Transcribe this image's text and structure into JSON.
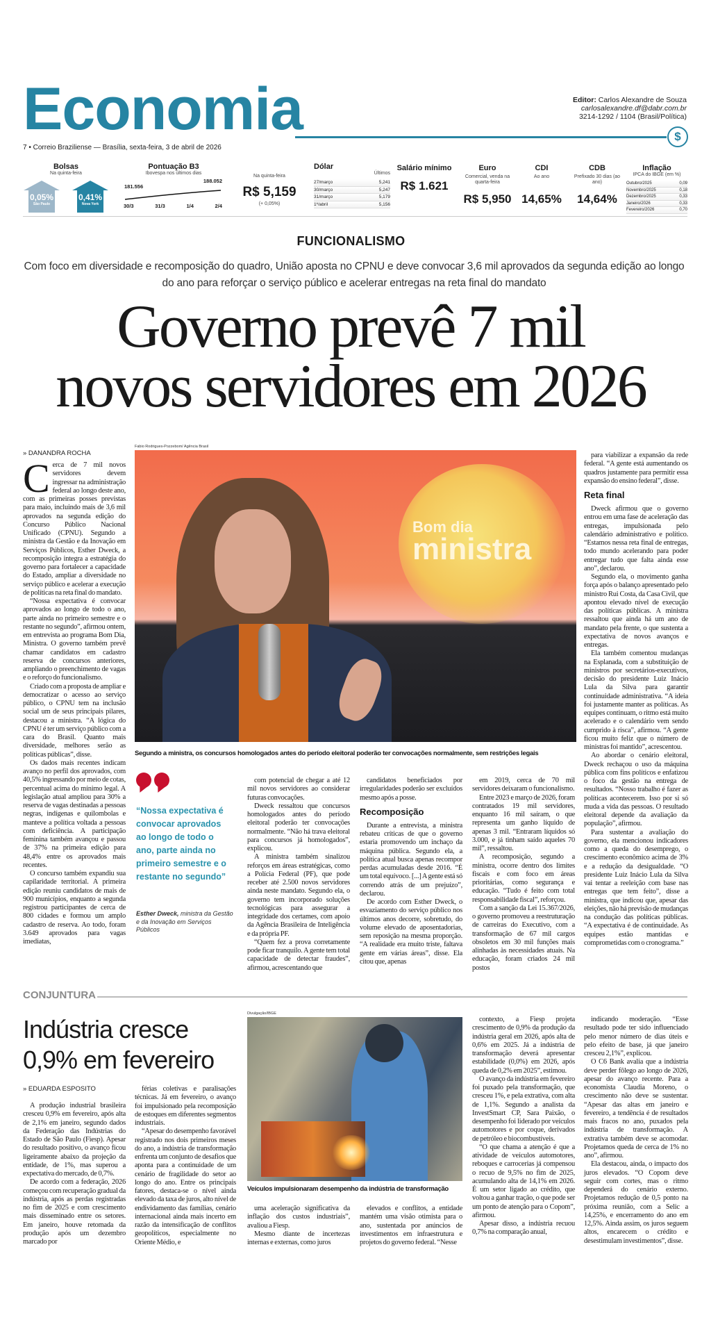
{
  "header": {
    "section": "Economia",
    "editor_label": "Editor:",
    "editor_name": "Carlos Alexandre de Souza",
    "editor_email": "carlosalexandre.df@dabr.com.br",
    "editor_phone": "3214-1292 / 1104 (Brasil/Política)",
    "dateline": "7 • Correio Braziliense — Brasília, sexta-feira, 3 de abril de 2026",
    "badge_icon": "dollar-sign-icon",
    "badge_symbol": "$",
    "accent_color": "#2684a3"
  },
  "market": {
    "bolsas": {
      "title": "Bolsas",
      "sub": "Na quinta-feira",
      "items": [
        {
          "value": "0,05%",
          "label": "São Paulo",
          "color": "#9db7c9",
          "direction": "up"
        },
        {
          "value": "0,41%",
          "label": "Nova York",
          "color": "#2684a3",
          "direction": "up"
        }
      ]
    },
    "b3": {
      "title": "Pontuação B3",
      "sub": "Ibovespa nos últimos dias",
      "start_value": "181.556",
      "end_value": "188.052",
      "dates": [
        "30/3",
        "31/3",
        "1/4",
        "2/4"
      ]
    },
    "dolar": {
      "title": "Dólar",
      "sub": "Na quinta-feira",
      "value": "R$ 5,159",
      "change": "(+ 0,05%)",
      "history_label": "Últimos",
      "history": [
        {
          "date": "27/março",
          "value": "5,241"
        },
        {
          "date": "30/março",
          "value": "5,247"
        },
        {
          "date": "31/março",
          "value": "5,179"
        },
        {
          "date": "1º/abril",
          "value": "5,156"
        }
      ]
    },
    "salario": {
      "title": "Salário mínimo",
      "value": "R$ 1.621"
    },
    "euro": {
      "title": "Euro",
      "sub": "Comercial, venda na quarta-feira",
      "value": "R$ 5,950"
    },
    "cdi": {
      "title": "CDI",
      "sub": "Ao ano",
      "value": "14,65%"
    },
    "cdb": {
      "title": "CDB",
      "sub": "Prefixado 30 dias (ao ano)",
      "value": "14,64%"
    },
    "inflacao": {
      "title": "Inflação",
      "sub": "IPCA do IBGE (em %)",
      "rows": [
        {
          "month": "Outubro/2025",
          "value": "0,09"
        },
        {
          "month": "Novembro/2025",
          "value": "0,18"
        },
        {
          "month": "Dezembro/2025",
          "value": "0,33"
        },
        {
          "month": "Janeiro/2026",
          "value": "0,33"
        },
        {
          "month": "Fevereiro/2026",
          "value": "0,70"
        }
      ]
    }
  },
  "main": {
    "kicker": "FUNCIONALISMO",
    "deck": "Com foco em diversidade e recomposição do quadro, União aposta no CPNU e deve convocar 3,6 mil aprovados da segunda edição ao longo do ano para reforçar o serviço público e acelerar entregas na reta final do mandato",
    "headline_1": "Governo prevê 7 mil",
    "headline_2": "novos servidores em 2026",
    "byline": "» Danandra Rocha",
    "photo_credit": "Fabio Rodrigues-Pozzebom/ Agência Brasil",
    "photo_logo_text": [
      "Bom dia",
      "ministra"
    ],
    "caption": "Segundo a ministra, os concursos homologados antes do período eleitoral poderão ter convocações normalmente, sem restrições legais",
    "quote": "“Nossa expectativa é convocar aprovados ao longo de todo o ano, parte ainda no primeiro semestre e o restante no segundo”",
    "quote_author": "Esther Dweck,",
    "quote_role": "ministra da Gestão e da Inovação em Serviços Públicos",
    "quote_color": "#2a93ad",
    "quote_mark_color": "#c8102e",
    "col1": [
      "Cerca de 7 mil novos servidores devem ingressar na administração federal ao longo deste ano, com as primeiras posses previstas para maio, incluindo mais de 3,6 mil aprovados na segunda edição do Concurso Público Nacional Unificado (CPNU). Segundo a ministra da Gestão e da Inovação em Serviços Públicos, Esther Dweck, a recomposição integra a estratégia do governo para fortalecer a capacidade do Estado, ampliar a diversidade no serviço público e acelerar a execução de políticas na reta final do mandato.",
      "“Nossa expectativa é convocar aprovados ao longo de todo o ano, parte ainda no primeiro semestre e o restante no segundo”, afirmou ontem, em entrevista ao programa Bom Dia, Ministra. O governo também prevê chamar candidatos em cadastro reserva de concursos anteriores, ampliando o preenchimento de vagas e o reforço do funcionalismo.",
      "Criado com a proposta de ampliar e democratizar o acesso ao serviço público, o CPNU tem na inclusão social um de seus principais pilares, destacou a ministra. “A lógica do CPNU é ter um serviço público com a cara do Brasil. Quanto mais diversidade, melhores serão as políticas públicas”, disse.",
      "Os dados mais recentes indicam avanço no perfil dos aprovados, com 40,5% ingressando por meio de cotas, percentual acima do mínimo legal. A legislação atual ampliou para 30% a reserva de vagas destinadas a pessoas negras, indígenas e quilombolas e manteve a política voltada a pessoas com deficiência. A participação feminina também avançou e passou de 37% na primeira edição para 48,4% entre os aprovados mais recentes.",
      "O concurso também expandiu sua capilaridade territorial. A primeira edição reuniu candidatos de mais de 900 municípios, enquanto a segunda registrou participantes de cerca de 800 cidades e formou um amplo cadastro de reserva. Ao todo, foram 3.649 aprovados para vagas imediatas,"
    ],
    "col3": [
      "com potencial de chegar a até 12 mil novos servidores ao considerar futuras convocações.",
      "Dweck ressaltou que concursos homologados antes do período eleitoral poderão ter convocações normalmente. “Não há trava eleitoral para concursos já homologados”, explicou.",
      "A ministra também sinalizou reforços em áreas estratégicas, como a Polícia Federal (PF), que pode receber até 2.500 novos servidores ainda neste mandato. Segundo ela, o governo tem incorporado soluções tecnológicas para assegurar a integridade dos certames, com apoio da Agência Brasileira de Inteligência e da própria PF.",
      "“Quem fez a prova corretamente pode ficar tranquilo. A gente tem total capacidade de detectar fraudes”, afirmou, acrescentando que"
    ],
    "col4": [
      "candidatos beneficiados por irregularidades poderão ser excluídos mesmo após a posse.",
      {
        "subhead": "Recomposição"
      },
      "Durante a entrevista, a ministra rebateu críticas de que o governo estaria promovendo um inchaço da máquina pública. Segundo ela, a política atual busca apenas recompor perdas acumuladas desde 2016. “É um total equívoco. [...] A gente está só correndo atrás de um prejuízo”, declarou.",
      "De acordo com Esther Dweck, o esvaziamento do serviço público nos últimos anos decorre, sobretudo, do volume elevado de aposentadorias, sem reposição na mesma proporção. “A realidade era muito triste, faltava gente em várias áreas”, disse. Ela citou que, apenas"
    ],
    "col5": [
      "em 2019, cerca de 70 mil servidores deixaram o funcionalismo.",
      "Entre 2023 e março de 2026, foram contratados 19 mil servidores, enquanto 16 mil saíram, o que representa um ganho líquido de apenas 3 mil. “Entraram líquidos só 3.000, e já tinham saído aqueles 70 mil”, ressaltou.",
      "A recomposição, segundo a ministra, ocorre dentro dos limites fiscais e com foco em áreas prioritárias, como segurança e educação. “Tudo é feito com total responsabilidade fiscal”, reforçou.",
      "Com a sanção da Lei 15.367/2026, o governo promoveu a reestruturação de carreiras do Executivo, com a transformação de 67 mil cargos obsoletos em 30 mil funções mais alinhadas às necessidades atuais. Na educação, foram criados 24 mil postos"
    ],
    "col6": [
      "para viabilizar a expansão da rede federal. “A gente está aumentando os quadros justamente para permitir essa expansão do ensino federal”, disse.",
      {
        "subhead": "Reta final"
      },
      "Dweck afirmou que o governo entrou em uma fase de aceleração das entregas, impulsionada pelo calendário administrativo e político. “Estamos nessa reta final de entregas, todo mundo acelerando para poder entregar tudo que falta ainda esse ano”, declarou.",
      "Segundo ela, o movimento ganha força após o balanço apresentado pelo ministro Rui Costa, da Casa Civil, que apontou elevado nível de execução das políticas públicas. A ministra ressaltou que ainda há um ano de mandato pela frente, o que sustenta a expectativa de novos avanços e entregas.",
      "Ela também comentou mudanças na Esplanada, com a substituição de ministros por secretários-executivos, decisão do presidente Luiz Inácio Lula da Silva para garantir continuidade administrativa. “A ideia foi justamente manter as políticas. As equipes continuam, o ritmo está muito acelerado e o calendário vem sendo cumprido à risca”, afirmou. “A gente ficou muito feliz que o número de ministras foi mantido”, acrescentou.",
      "Ao abordar o cenário eleitoral, Dweck rechaçou o uso da máquina pública com fins políticos e enfatizou o foco da gestão na entrega de resultados. “Nosso trabalho é fazer as políticas acontecerem. Isso por si só muda a vida das pessoas. O resultado eleitoral depende da avaliação da população”, afirmou.",
      "Para sustentar a avaliação do governo, ela mencionou indicadores como a queda do desemprego, o crescimento econômico acima de 3% e a redução da desigualdade. “O presidente Luiz Inácio Lula da Silva vai tentar a reeleição com base nas entregas que tem feito”, disse a ministra, que indicou que, apesar das eleições, não há previsão de mudanças na condução das políticas públicas. “A expectativa é de continuidade. As equipes estão mantidas e comprometidas com o cronograma.”"
    ]
  },
  "second": {
    "section": "CONJUNTURA",
    "headline_1": "Indústria cresce",
    "headline_2": "0,9% em fevereiro",
    "byline": "» Eduarda Esposito",
    "photo_credit": "Divulgação/IBGE",
    "caption": "Veículos impulsionaram desempenho da indústria de transformação",
    "col1": [
      "A produção industrial brasileira cresceu 0,9% em fevereiro, após alta de 2,1% em janeiro, segundo dados da Federação das Indústrias do Estado de São Paulo (Fiesp). Apesar do resultado positivo, o avanço ficou ligeiramente abaixo da projeção da entidade, de 1%, mas superou a expectativa do mercado, de 0,7%.",
      "De acordo com a federação, 2026 começou com recuperação gradual da indústria, após as perdas registradas no fim de 2025 e com crescimento mais disseminado entre os setores. Em janeiro, houve retomada da produção após um dezembro marcado por"
    ],
    "col2": [
      "férias coletivas e paralisações técnicas. Já em fevereiro, o avanço foi impulsionado pela recomposição de estoques em diferentes segmentos industriais.",
      "“Apesar do desempenho favorável registrado nos dois primeiros meses do ano, a indústria de transformação enfrenta um conjunto de desafios que aponta para a continuidade de um cenário de fragilidade do setor ao longo do ano. Entre os principais fatores, destaca-se o nível ainda elevado da taxa de juros, alto nível de endividamento das famílias, cenário internacional ainda mais incerto em razão da intensificação de conflitos geopolíticos, especialmente no Oriente Médio, e"
    ],
    "col3": [
      "uma aceleração significativa da inflação dos custos industriais”, avaliou a Fiesp.",
      "Mesmo diante de incertezas internas e externas, como juros"
    ],
    "col4": [
      "elevados e conflitos, a entidade mantém uma visão otimista para o ano, sustentada por anúncios de investimentos em infraestrutura e projetos do governo federal. “Nesse"
    ],
    "col5": [
      "contexto, a Fiesp projeta crescimento de 0,9% da produção da indústria geral em 2026, após alta de 0,6% em 2025. Já a indústria de transformação deverá apresentar estabilidade (0,0%) em 2026, após queda de 0,2% em 2025”, estimou.",
      "O avanço da indústria em fevereiro foi puxado pela transformação, que cresceu 1%, e pela extrativa, com alta de 1,1%. Segundo a analista da InvestSmart CP, Sara Paixão, o desempenho foi liderado por veículos automotores e por coque, derivados de petróleo e biocombustíveis.",
      "“O que chama a atenção é que a atividade de veículos automotores, reboques e carrocerias já compensou o recuo de 9,5% no fim de 2025, acumulando alta de 14,1% em 2026. É um setor ligado ao crédito, que voltou a ganhar tração, o que pode ser um ponto de atenção para o Copom”, afirmou.",
      "Apesar disso, a indústria recuou 0,7% na comparação anual,"
    ],
    "col6": [
      "indicando moderação. “Esse resultado pode ter sido influenciado pelo menor número de dias úteis e pelo efeito de base, já que janeiro cresceu 2,1%”, explicou.",
      "O C6 Bank avalia que a indústria deve perder fôlego ao longo de 2026, apesar do avanço recente. Para a economista Claudia Moreno, o crescimento não deve se sustentar. “Apesar das altas em janeiro e fevereiro, a tendência é de resultados mais fracos no ano, puxados pela indústria de transformação. A extrativa também deve se acomodar. Projetamos queda de cerca de 1% no ano”, afirmou.",
      "Ela destacou, ainda, o impacto dos juros elevados. “O Copom deve seguir com cortes, mas o ritmo dependerá do cenário externo. Projetamos redução de 0,5 ponto na próxima reunião, com a Selic a 14,25%, e encerramento do ano em 12,5%. Ainda assim, os juros seguem altos, encarecem o crédito e desestimulam investimentos”, disse."
    ]
  }
}
